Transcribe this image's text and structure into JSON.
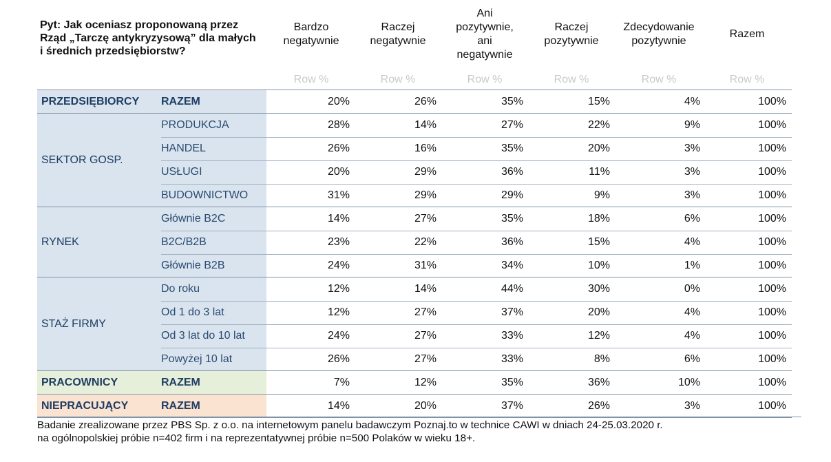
{
  "chart_data": {
    "type": "table",
    "question": "Pyt: Jak oceniasz proponowaną przez Rząd „Tarczę antykryzysową” dla małych i średnich przedsiębiorstw?",
    "columns": [
      "Bardzo negatywnie",
      "Raczej negatywnie",
      "Ani pozytywnie, ani negatywnie",
      "Raczej pozytywnie",
      "Zdecydowanie pozytywnie",
      "Razem"
    ],
    "column_header_lines": [
      [
        "Bardzo",
        "negatywnie"
      ],
      [
        "Raczej",
        "negatywnie"
      ],
      [
        "Ani",
        "pozytywnie,",
        "ani",
        "negatywnie"
      ],
      [
        "Raczej",
        "pozytywnie"
      ],
      [
        "Zdecydowanie",
        "pozytywnie"
      ],
      [
        "Razem"
      ]
    ],
    "subheader": "Row %",
    "groups": [
      {
        "label": "PRZEDSIĘBIORCY",
        "style": "total",
        "band": "blue",
        "rows": [
          {
            "label": "RAZEM",
            "values": [
              "20%",
              "26%",
              "35%",
              "15%",
              "4%",
              "100%"
            ]
          }
        ]
      },
      {
        "label": "SEKTOR GOSP.",
        "style": "sub",
        "band": "blue",
        "rows": [
          {
            "label": "PRODUKCJA",
            "values": [
              "28%",
              "14%",
              "27%",
              "22%",
              "9%",
              "100%"
            ]
          },
          {
            "label": "HANDEL",
            "values": [
              "26%",
              "16%",
              "35%",
              "20%",
              "3%",
              "100%"
            ]
          },
          {
            "label": "USŁUGI",
            "values": [
              "20%",
              "29%",
              "36%",
              "11%",
              "3%",
              "100%"
            ]
          },
          {
            "label": "BUDOWNICTWO",
            "values": [
              "31%",
              "29%",
              "29%",
              "9%",
              "3%",
              "100%"
            ]
          }
        ]
      },
      {
        "label": "RYNEK",
        "style": "sub",
        "band": "blue",
        "rows": [
          {
            "label": "Głównie B2C",
            "values": [
              "14%",
              "27%",
              "35%",
              "18%",
              "6%",
              "100%"
            ]
          },
          {
            "label": "B2C/B2B",
            "values": [
              "23%",
              "22%",
              "36%",
              "15%",
              "4%",
              "100%"
            ]
          },
          {
            "label": "Głównie B2B",
            "values": [
              "24%",
              "31%",
              "34%",
              "10%",
              "1%",
              "100%"
            ]
          }
        ]
      },
      {
        "label": "STAŻ FIRMY",
        "style": "sub",
        "band": "blue",
        "rows": [
          {
            "label": "Do roku",
            "values": [
              "12%",
              "14%",
              "44%",
              "30%",
              "0%",
              "100%"
            ]
          },
          {
            "label": "Od 1 do 3 lat",
            "values": [
              "12%",
              "27%",
              "37%",
              "20%",
              "4%",
              "100%"
            ]
          },
          {
            "label": "Od 3 lat do 10 lat",
            "values": [
              "24%",
              "27%",
              "33%",
              "12%",
              "4%",
              "100%"
            ]
          },
          {
            "label": "Powyżej 10 lat",
            "values": [
              "26%",
              "27%",
              "33%",
              "8%",
              "6%",
              "100%"
            ]
          }
        ]
      },
      {
        "label": "PRACOWNICY",
        "style": "total",
        "band": "green",
        "rows": [
          {
            "label": "RAZEM",
            "values": [
              "7%",
              "12%",
              "35%",
              "36%",
              "10%",
              "100%"
            ]
          }
        ]
      },
      {
        "label": "NIEPRACUJĄCY",
        "style": "total",
        "band": "orange",
        "rows": [
          {
            "label": "RAZEM",
            "values": [
              "14%",
              "20%",
              "37%",
              "26%",
              "3%",
              "100%"
            ]
          }
        ]
      }
    ],
    "footnote": [
      "Badanie zrealizowane przez PBS Sp. z o.o. na internetowym panelu badawczym Poznaj.to w technice CAWI w dniach 24-25.03.2020 r.",
      "na ogólnopolskiej próbie n=402 firm i na reprezentatywnej próbie n=500 Polaków w wieku 18+."
    ]
  }
}
